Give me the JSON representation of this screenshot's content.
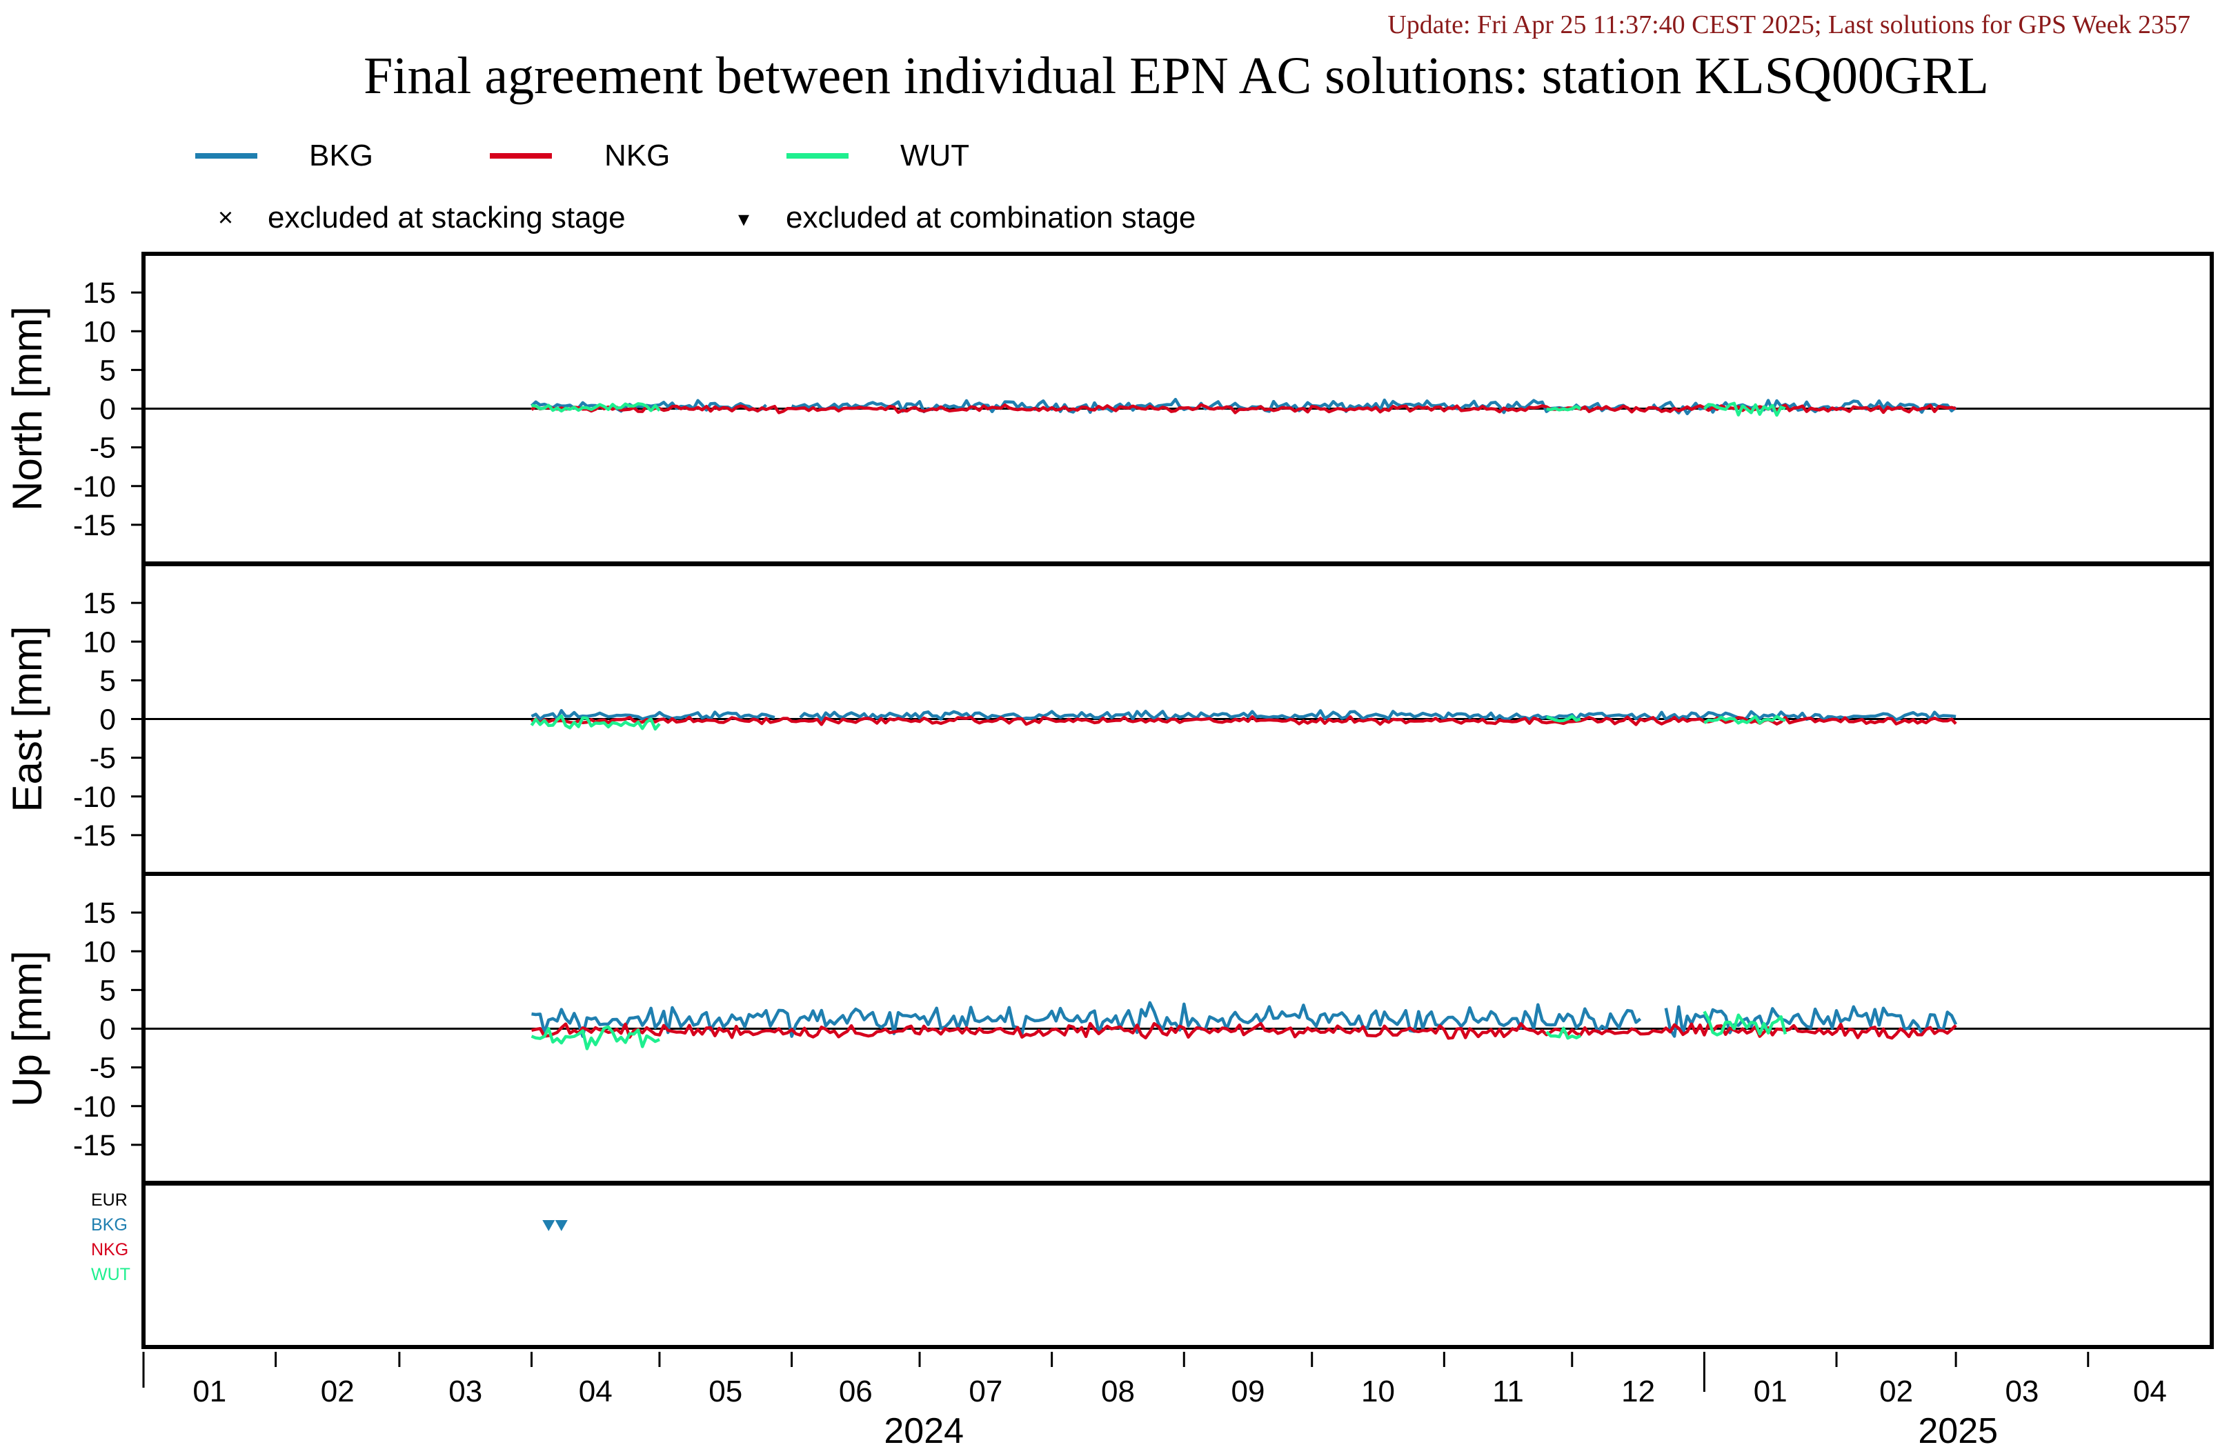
{
  "header": {
    "update_text": "Update: Fri Apr 25 11:37:40 CEST 2025; Last solutions for GPS Week 2357",
    "title": "Final agreement between individual EPN AC solutions: station KLSQ00GRL"
  },
  "colors": {
    "update_text": "#8b1a1a",
    "BKG": "#1f7fb0",
    "NKG": "#d6001c",
    "WUT": "#1fef8f",
    "EUR": "#000000",
    "axes": "#000000"
  },
  "legend": {
    "series": [
      {
        "name": "BKG",
        "color_key": "BKG"
      },
      {
        "name": "NKG",
        "color_key": "NKG"
      },
      {
        "name": "WUT",
        "color_key": "WUT"
      }
    ],
    "markers": [
      {
        "symbol": "×",
        "label": "excluded at stacking stage"
      },
      {
        "symbol": "▾",
        "label": "excluded at combination stage"
      }
    ]
  },
  "chart_data": {
    "type": "line",
    "x_axis": {
      "month_ticks": [
        "01",
        "02",
        "03",
        "04",
        "05",
        "06",
        "07",
        "08",
        "09",
        "10",
        "11",
        "12",
        "01",
        "02",
        "03",
        "04"
      ],
      "year_labels": [
        "2024",
        "2025"
      ],
      "range": [
        "2024-01-01",
        "2025-04-30"
      ]
    },
    "panels": [
      {
        "id": "north",
        "ylabel": "North [mm]",
        "ylim": [
          -20,
          20
        ],
        "yticks": [
          15,
          10,
          5,
          0,
          -5,
          -10,
          -15
        ],
        "series": [
          {
            "name": "BKG",
            "start": "2024-04-01",
            "end": "2025-03-01",
            "mean": 0.3,
            "amplitude": 1.0,
            "gaps": [
              [
                "2024-05-27",
                "2024-05-31"
              ],
              [
                "2024-12-15",
                "2024-12-19"
              ]
            ]
          },
          {
            "name": "NKG",
            "start": "2024-04-01",
            "end": "2025-03-01",
            "mean": 0.0,
            "amplitude": 0.6
          },
          {
            "name": "WUT",
            "start": "2024-04-01",
            "end": "2024-05-01",
            "mean": 0.2,
            "amplitude": 0.8
          },
          {
            "name": "WUT",
            "start": "2024-11-25",
            "end": "2024-12-03",
            "mean": 0.0,
            "amplitude": 0.5
          },
          {
            "name": "WUT",
            "start": "2025-01-01",
            "end": "2025-01-20",
            "mean": 0.0,
            "amplitude": 1.0
          }
        ]
      },
      {
        "id": "east",
        "ylabel": "East [mm]",
        "ylim": [
          -20,
          20
        ],
        "yticks": [
          15,
          10,
          5,
          0,
          -5,
          -10,
          -15
        ],
        "series": [
          {
            "name": "BKG",
            "start": "2024-04-01",
            "end": "2025-03-01",
            "mean": 0.4,
            "amplitude": 0.8,
            "gaps": [
              [
                "2024-05-29",
                "2024-06-02"
              ]
            ]
          },
          {
            "name": "NKG",
            "start": "2024-04-01",
            "end": "2025-03-01",
            "mean": -0.2,
            "amplitude": 0.6
          },
          {
            "name": "WUT",
            "start": "2024-04-01",
            "end": "2024-05-01",
            "mean": -0.6,
            "amplitude": 1.2
          },
          {
            "name": "WUT",
            "start": "2024-11-25",
            "end": "2024-12-03",
            "mean": 0.0,
            "amplitude": 0.5
          },
          {
            "name": "WUT",
            "start": "2025-01-01",
            "end": "2025-01-20",
            "mean": 0.0,
            "amplitude": 0.8
          }
        ]
      },
      {
        "id": "up",
        "ylabel": "Up [mm]",
        "ylim": [
          -20,
          20
        ],
        "yticks": [
          15,
          10,
          5,
          0,
          -5,
          -10,
          -15
        ],
        "series": [
          {
            "name": "BKG",
            "start": "2024-04-01",
            "end": "2025-03-01",
            "mean": 1.2,
            "amplitude": 2.6,
            "gaps": [
              [
                "2024-12-18",
                "2024-12-22"
              ]
            ]
          },
          {
            "name": "NKG",
            "start": "2024-04-01",
            "end": "2025-03-01",
            "mean": -0.3,
            "amplitude": 1.2
          },
          {
            "name": "WUT",
            "start": "2024-04-01",
            "end": "2024-05-01",
            "mean": -1.2,
            "amplitude": 2.4
          },
          {
            "name": "WUT",
            "start": "2024-11-25",
            "end": "2024-12-03",
            "mean": -1.0,
            "amplitude": 1.5
          },
          {
            "name": "WUT",
            "start": "2025-01-01",
            "end": "2025-01-20",
            "mean": 0.5,
            "amplitude": 2.2
          }
        ]
      }
    ],
    "exclusion_panel": {
      "rows": [
        "EUR",
        "BKG",
        "NKG",
        "WUT"
      ],
      "markers": [
        {
          "row": "BKG",
          "date": "2024-04-05",
          "symbol": "▾"
        },
        {
          "row": "BKG",
          "date": "2024-04-08",
          "symbol": "▾"
        }
      ]
    }
  }
}
